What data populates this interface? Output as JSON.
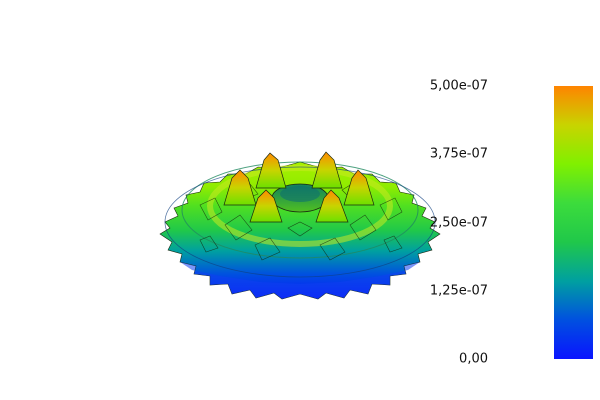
{
  "colormap": {
    "stops": [
      "#0a14ff",
      "#0050e0",
      "#00a0a0",
      "#20c84a",
      "#3cdc3c",
      "#80f000",
      "#c8d400",
      "#ff8400"
    ]
  },
  "colorbar": {
    "min": 0,
    "max": 5e-07,
    "ticks": [
      {
        "value": 5e-07,
        "label": "5,00e-07"
      },
      {
        "value": 3.75e-07,
        "label": "3,75e-07"
      },
      {
        "value": 2.5e-07,
        "label": "2,50e-07"
      },
      {
        "value": 1.25e-07,
        "label": "1,25e-07"
      },
      {
        "value": 0,
        "label": "0,00"
      }
    ]
  },
  "surface": {
    "background": "#ffffff",
    "mesh_color": "#1a2a10"
  }
}
